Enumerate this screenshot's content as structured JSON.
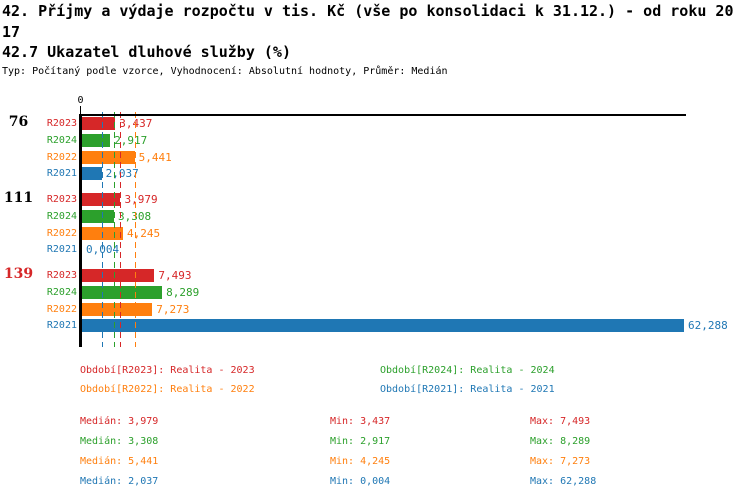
{
  "header": {
    "title_line1": "42. Příjmy a výdaje rozpočtu v tis. Kč (vše po konsolidaci k 31.12.) - od roku 20",
    "title_line2": "17",
    "section_title": "42.7 Ukazatel dluhové služby (%)",
    "meta": "Typ: Počítaný podle vzorce, Vyhodnocení: Absolutní hodnoty, Průměr: Medián"
  },
  "chart_data": {
    "type": "bar",
    "orientation": "horizontal",
    "value_axis": {
      "min": 0,
      "max": 62.288,
      "zero_label": "0",
      "gridlines": false
    },
    "legend_position": "bottom",
    "series": [
      {
        "id": "R2023",
        "legend": "Období[R2023]: Realita - 2023",
        "color": "#d62728",
        "median": 3.979
      },
      {
        "id": "R2024",
        "legend": "Období[R2024]: Realita - 2024",
        "color": "#2ca02c",
        "median": 3.308
      },
      {
        "id": "R2022",
        "legend": "Období[R2022]: Realita - 2022",
        "color": "#ff7f0e",
        "median": 5.441
      },
      {
        "id": "R2021",
        "legend": "Období[R2021]: Realita - 2021",
        "color": "#1f77b4",
        "median": 2.037
      }
    ],
    "groups": [
      {
        "category": "76",
        "category_color": "#000000",
        "values": [
          3.437,
          2.917,
          5.441,
          2.037
        ],
        "display": [
          "3,437",
          "2,917",
          "5,441",
          "2,037"
        ]
      },
      {
        "category": "111",
        "category_color": "#000000",
        "values": [
          3.979,
          3.308,
          4.245,
          0.004
        ],
        "display": [
          "3,979",
          "3,308",
          "4,245",
          "0,004"
        ]
      },
      {
        "category": "139",
        "category_color": "#d62728",
        "values": [
          7.493,
          8.289,
          7.273,
          62.288
        ],
        "display": [
          "7,493",
          "8,289",
          "7,273",
          "62,288"
        ]
      }
    ]
  },
  "stats": {
    "median_label": "Medián",
    "min_label": "Min",
    "max_label": "Max",
    "rows": [
      {
        "series": "R2023",
        "color": "#d62728",
        "median": "3,979",
        "min": "3,437",
        "max": "7,493"
      },
      {
        "series": "R2024",
        "color": "#2ca02c",
        "median": "3,308",
        "min": "2,917",
        "max": "8,289"
      },
      {
        "series": "R2022",
        "color": "#ff7f0e",
        "median": "5,441",
        "min": "4,245",
        "max": "7,273"
      },
      {
        "series": "R2021",
        "color": "#1f77b4",
        "median": "2,037",
        "min": "0,004",
        "max": "62,288"
      }
    ]
  }
}
